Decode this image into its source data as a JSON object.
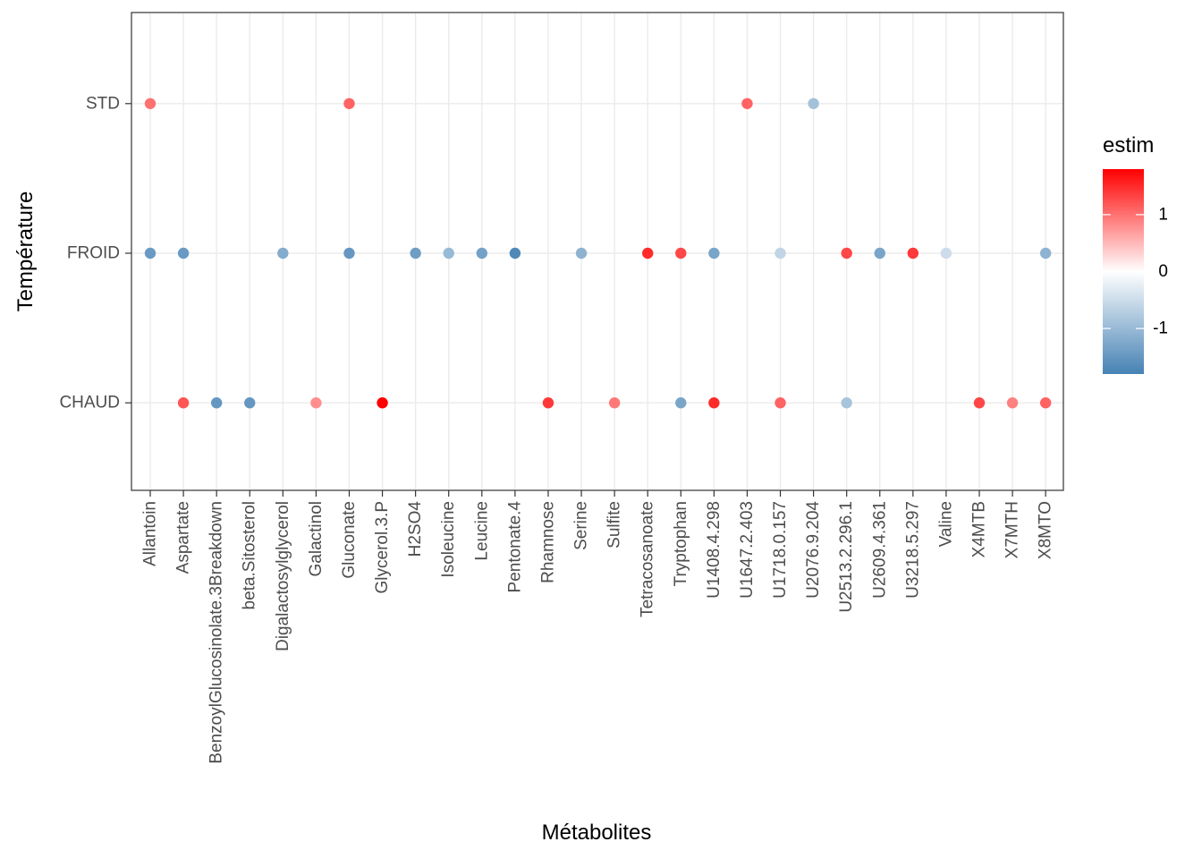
{
  "chart_data": {
    "type": "scatter",
    "title": "",
    "xlabel": "Métabolites",
    "ylabel": "Température",
    "x_categories": [
      "Allantoin",
      "Aspartate",
      "BenzoylGlucosinolate.3Breakdown",
      "beta.Sitosterol",
      "Digalactosylglycerol",
      "Galactinol",
      "Gluconate",
      "Glycerol.3.P",
      "H2SO4",
      "Isoleucine",
      "Leucine",
      "Pentonate.4",
      "Rhamnose",
      "Serine",
      "Sulfite",
      "Tetracosanoate",
      "Tryptophan",
      "U1408.4.298",
      "U1647.2.403",
      "U1718.0.157",
      "U2076.9.204",
      "U2513.2.296.1",
      "U2609.4.361",
      "U3218.5.297",
      "Valine",
      "X4MTB",
      "X7MTH",
      "X8MTO"
    ],
    "y_categories": [
      "CHAUD",
      "FROID",
      "STD"
    ],
    "grid": true,
    "legend": {
      "title": "estim",
      "placement": "right",
      "range": [
        -1.8,
        1.8
      ],
      "ticks": [
        1,
        0,
        -1
      ],
      "tick_labels": [
        "1",
        "0",
        "-1"
      ],
      "low_color": "#4682b4",
      "mid_color": "#ffffff",
      "high_color": "#ff0000"
    },
    "points": [
      {
        "x": "Allantoin",
        "y": "STD",
        "estim": 1.0
      },
      {
        "x": "Allantoin",
        "y": "FROID",
        "estim": -1.45
      },
      {
        "x": "Aspartate",
        "y": "FROID",
        "estim": -1.45
      },
      {
        "x": "Aspartate",
        "y": "CHAUD",
        "estim": 1.2
      },
      {
        "x": "BenzoylGlucosinolate.3Breakdown",
        "y": "CHAUD",
        "estim": -1.5
      },
      {
        "x": "beta.Sitosterol",
        "y": "CHAUD",
        "estim": -1.5
      },
      {
        "x": "Digalactosylglycerol",
        "y": "FROID",
        "estim": -1.2
      },
      {
        "x": "Galactinol",
        "y": "CHAUD",
        "estim": 0.8
      },
      {
        "x": "Gluconate",
        "y": "STD",
        "estim": 1.1
      },
      {
        "x": "Gluconate",
        "y": "FROID",
        "estim": -1.5
      },
      {
        "x": "Glycerol.3.P",
        "y": "CHAUD",
        "estim": 1.8
      },
      {
        "x": "H2SO4",
        "y": "FROID",
        "estim": -1.4
      },
      {
        "x": "Isoleucine",
        "y": "FROID",
        "estim": -1.0
      },
      {
        "x": "Leucine",
        "y": "FROID",
        "estim": -1.35
      },
      {
        "x": "Pentonate.4",
        "y": "FROID",
        "estim": -1.7
      },
      {
        "x": "Rhamnose",
        "y": "CHAUD",
        "estim": 1.4
      },
      {
        "x": "Serine",
        "y": "FROID",
        "estim": -1.1
      },
      {
        "x": "Sulfite",
        "y": "CHAUD",
        "estim": 0.95
      },
      {
        "x": "Tetracosanoate",
        "y": "FROID",
        "estim": 1.5
      },
      {
        "x": "Tryptophan",
        "y": "FROID",
        "estim": 1.3
      },
      {
        "x": "Tryptophan",
        "y": "CHAUD",
        "estim": -1.3
      },
      {
        "x": "U1408.4.298",
        "y": "FROID",
        "estim": -1.3
      },
      {
        "x": "U1408.4.298",
        "y": "CHAUD",
        "estim": 1.5
      },
      {
        "x": "U1647.2.403",
        "y": "STD",
        "estim": 1.1
      },
      {
        "x": "U1718.0.157",
        "y": "FROID",
        "estim": -0.6
      },
      {
        "x": "U1718.0.157",
        "y": "CHAUD",
        "estim": 1.1
      },
      {
        "x": "U2076.9.204",
        "y": "STD",
        "estim": -0.9
      },
      {
        "x": "U2513.2.296.1",
        "y": "FROID",
        "estim": 1.3
      },
      {
        "x": "U2513.2.296.1",
        "y": "CHAUD",
        "estim": -0.85
      },
      {
        "x": "U2609.4.361",
        "y": "FROID",
        "estim": -1.3
      },
      {
        "x": "U3218.5.297",
        "y": "FROID",
        "estim": 1.4
      },
      {
        "x": "Valine",
        "y": "FROID",
        "estim": -0.5
      },
      {
        "x": "X4MTB",
        "y": "CHAUD",
        "estim": 1.3
      },
      {
        "x": "X7MTH",
        "y": "CHAUD",
        "estim": 0.9
      },
      {
        "x": "X8MTO",
        "y": "FROID",
        "estim": -1.1
      },
      {
        "x": "X8MTO",
        "y": "CHAUD",
        "estim": 1.1
      }
    ]
  }
}
